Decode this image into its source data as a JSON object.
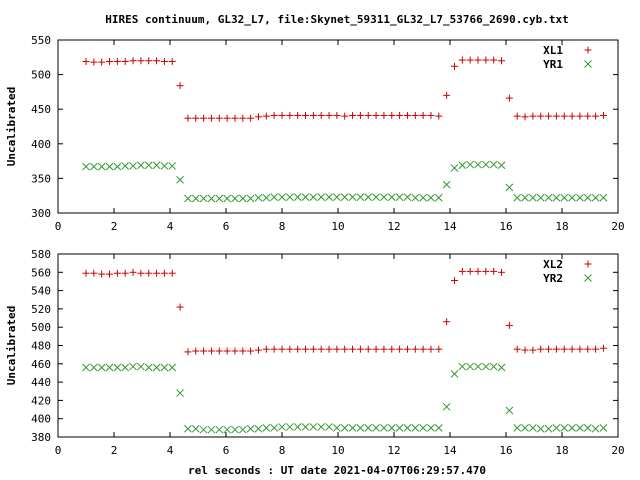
{
  "title": "HIRES continuum, GL32_L7, file:Skynet_59311_GL32_L7_53766_2690.cyb.txt",
  "xlabel": "rel seconds : UT date 2021-04-07T06:29:57.470",
  "colors": {
    "red": "#cc0000",
    "green": "#339933",
    "axis": "#000000"
  },
  "chart_data": [
    {
      "type": "scatter",
      "title": "",
      "xlabel": "",
      "ylabel": "Uncalibrated",
      "xlim": [
        0,
        20
      ],
      "ylim": [
        300,
        550
      ],
      "xticks": [
        0,
        2,
        4,
        6,
        8,
        10,
        12,
        14,
        16,
        18,
        20
      ],
      "yticks": [
        300,
        350,
        400,
        450,
        500,
        550
      ],
      "legend_position": "top-right",
      "series": [
        {
          "name": "XL1",
          "marker": "plus",
          "color": "#cc0000",
          "x": [
            1.0,
            1.28,
            1.56,
            1.84,
            2.12,
            2.4,
            2.68,
            2.96,
            3.24,
            3.52,
            3.8,
            4.08,
            4.36,
            4.64,
            4.92,
            5.2,
            5.48,
            5.76,
            6.04,
            6.32,
            6.6,
            6.88,
            7.16,
            7.44,
            7.72,
            8.0,
            8.28,
            8.56,
            8.84,
            9.12,
            9.4,
            9.68,
            9.96,
            10.24,
            10.52,
            10.8,
            11.08,
            11.36,
            11.64,
            11.92,
            12.2,
            12.48,
            12.76,
            13.04,
            13.32,
            13.6,
            13.88,
            14.16,
            14.44,
            14.72,
            15.0,
            15.28,
            15.56,
            15.84,
            16.12,
            16.4,
            16.68,
            16.96,
            17.24,
            17.52,
            17.8,
            18.08,
            18.36,
            18.64,
            18.92,
            19.2,
            19.48
          ],
          "y": [
            519,
            518,
            518,
            519,
            519,
            519,
            520,
            520,
            520,
            520,
            519,
            519,
            484,
            437,
            437,
            437,
            437,
            437,
            437,
            437,
            437,
            437,
            439,
            440,
            441,
            441,
            441,
            441,
            441,
            441,
            441,
            441,
            441,
            440,
            441,
            441,
            441,
            441,
            441,
            441,
            441,
            441,
            441,
            441,
            441,
            440,
            470,
            512,
            521,
            521,
            521,
            521,
            521,
            520,
            466,
            440,
            439,
            440,
            440,
            440,
            440,
            440,
            440,
            440,
            440,
            440,
            441
          ]
        },
        {
          "name": "YR1",
          "marker": "cross",
          "color": "#339933",
          "x": [
            1.0,
            1.28,
            1.56,
            1.84,
            2.12,
            2.4,
            2.68,
            2.96,
            3.24,
            3.52,
            3.8,
            4.08,
            4.36,
            4.64,
            4.92,
            5.2,
            5.48,
            5.76,
            6.04,
            6.32,
            6.6,
            6.88,
            7.16,
            7.44,
            7.72,
            8.0,
            8.28,
            8.56,
            8.84,
            9.12,
            9.4,
            9.68,
            9.96,
            10.24,
            10.52,
            10.8,
            11.08,
            11.36,
            11.64,
            11.92,
            12.2,
            12.48,
            12.76,
            13.04,
            13.32,
            13.6,
            13.88,
            14.16,
            14.44,
            14.72,
            15.0,
            15.28,
            15.56,
            15.84,
            16.12,
            16.4,
            16.68,
            16.96,
            17.24,
            17.52,
            17.8,
            18.08,
            18.36,
            18.64,
            18.92,
            19.2,
            19.48
          ],
          "y": [
            367,
            367,
            367,
            367,
            367,
            368,
            368,
            369,
            369,
            369,
            368,
            368,
            348,
            321,
            321,
            321,
            321,
            321,
            321,
            321,
            321,
            321,
            322,
            322,
            323,
            323,
            323,
            323,
            323,
            323,
            323,
            323,
            323,
            323,
            323,
            323,
            323,
            323,
            323,
            323,
            323,
            323,
            322,
            322,
            322,
            322,
            341,
            365,
            369,
            370,
            370,
            370,
            370,
            369,
            337,
            322,
            322,
            322,
            322,
            322,
            322,
            322,
            322,
            322,
            322,
            322,
            322
          ]
        }
      ]
    },
    {
      "type": "scatter",
      "title": "",
      "xlabel": "rel seconds : UT date 2021-04-07T06:29:57.470",
      "ylabel": "Uncalibrated",
      "xlim": [
        0,
        20
      ],
      "ylim": [
        380,
        580
      ],
      "xticks": [
        0,
        2,
        4,
        6,
        8,
        10,
        12,
        14,
        16,
        18,
        20
      ],
      "yticks": [
        380,
        400,
        420,
        440,
        460,
        480,
        500,
        520,
        540,
        560,
        580
      ],
      "legend_position": "top-right",
      "series": [
        {
          "name": "XL2",
          "marker": "plus",
          "color": "#cc0000",
          "x": [
            1.0,
            1.28,
            1.56,
            1.84,
            2.12,
            2.4,
            2.68,
            2.96,
            3.24,
            3.52,
            3.8,
            4.08,
            4.36,
            4.64,
            4.92,
            5.2,
            5.48,
            5.76,
            6.04,
            6.32,
            6.6,
            6.88,
            7.16,
            7.44,
            7.72,
            8.0,
            8.28,
            8.56,
            8.84,
            9.12,
            9.4,
            9.68,
            9.96,
            10.24,
            10.52,
            10.8,
            11.08,
            11.36,
            11.64,
            11.92,
            12.2,
            12.48,
            12.76,
            13.04,
            13.32,
            13.6,
            13.88,
            14.16,
            14.44,
            14.72,
            15.0,
            15.28,
            15.56,
            15.84,
            16.12,
            16.4,
            16.68,
            16.96,
            17.24,
            17.52,
            17.8,
            18.08,
            18.36,
            18.64,
            18.92,
            19.2,
            19.48
          ],
          "y": [
            559,
            559,
            558,
            558,
            559,
            559,
            560,
            559,
            559,
            559,
            559,
            559,
            522,
            473,
            474,
            474,
            474,
            474,
            474,
            474,
            474,
            474,
            475,
            476,
            476,
            476,
            476,
            476,
            476,
            476,
            476,
            476,
            476,
            476,
            476,
            476,
            476,
            476,
            476,
            476,
            476,
            476,
            476,
            476,
            476,
            476,
            506,
            551,
            561,
            561,
            561,
            561,
            561,
            560,
            502,
            476,
            475,
            475,
            476,
            476,
            476,
            476,
            476,
            476,
            476,
            476,
            477
          ]
        },
        {
          "name": "YR2",
          "marker": "cross",
          "color": "#339933",
          "x": [
            1.0,
            1.28,
            1.56,
            1.84,
            2.12,
            2.4,
            2.68,
            2.96,
            3.24,
            3.52,
            3.8,
            4.08,
            4.36,
            4.64,
            4.92,
            5.2,
            5.48,
            5.76,
            6.04,
            6.32,
            6.6,
            6.88,
            7.16,
            7.44,
            7.72,
            8.0,
            8.28,
            8.56,
            8.84,
            9.12,
            9.4,
            9.68,
            9.96,
            10.24,
            10.52,
            10.8,
            11.08,
            11.36,
            11.64,
            11.92,
            12.2,
            12.48,
            12.76,
            13.04,
            13.32,
            13.6,
            13.88,
            14.16,
            14.44,
            14.72,
            15.0,
            15.28,
            15.56,
            15.84,
            16.12,
            16.4,
            16.68,
            16.96,
            17.24,
            17.52,
            17.8,
            18.08,
            18.36,
            18.64,
            18.92,
            19.2,
            19.48
          ],
          "y": [
            456,
            456,
            456,
            456,
            456,
            456,
            457,
            457,
            456,
            456,
            456,
            456,
            428,
            389,
            389,
            388,
            388,
            388,
            388,
            388,
            388,
            389,
            389,
            390,
            390,
            391,
            391,
            391,
            391,
            391,
            391,
            391,
            390,
            390,
            390,
            390,
            390,
            390,
            390,
            390,
            390,
            390,
            390,
            390,
            390,
            390,
            413,
            449,
            457,
            457,
            457,
            457,
            457,
            456,
            409,
            390,
            390,
            390,
            389,
            389,
            390,
            390,
            390,
            390,
            390,
            389,
            390
          ]
        }
      ]
    }
  ]
}
